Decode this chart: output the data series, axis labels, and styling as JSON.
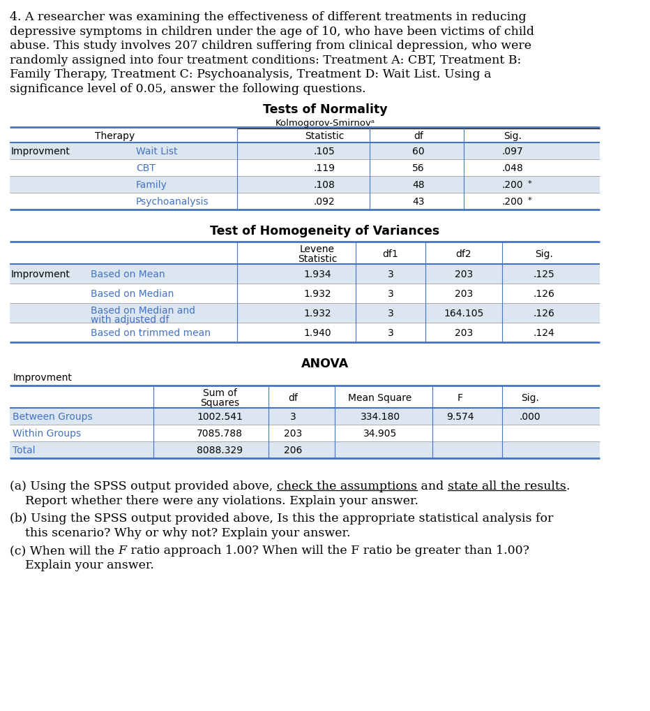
{
  "intro_lines": [
    "4. A researcher was examining the effectiveness of different treatments in reducing",
    "depressive symptoms in children under the age of 10, who have been victims of child",
    "abuse. This study involves 207 children suffering from clinical depression, who were",
    "randomly assigned into four treatment conditions: Treatment A: CBT, Treatment B:",
    "Family Therapy, Treatment C: Psychoanalysis, Treatment D: Wait List. Using a",
    "significance level of 0.05, answer the following questions."
  ],
  "normality_title": "Tests of Normality",
  "ks_subtitle": "Kolmogorov-Smirnovᵃ",
  "norm_col_headers": [
    "Therapy",
    "Statistic",
    "df",
    "Sig."
  ],
  "norm_rows": [
    [
      "Wait List",
      ".105",
      "60",
      ".097",
      false
    ],
    [
      "CBT",
      ".119",
      "56",
      ".048",
      false
    ],
    [
      "Family",
      ".108",
      "48",
      ".200",
      true
    ],
    [
      "Psychoanalysis",
      ".092",
      "43",
      ".200",
      true
    ]
  ],
  "homogeneity_title": "Test of Homogeneity of Variances",
  "hom_col_headers": [
    "Levene\nStatistic",
    "df1",
    "df2",
    "Sig."
  ],
  "hom_rows": [
    [
      "Based on Mean",
      "1.934",
      "3",
      "203",
      ".125"
    ],
    [
      "Based on Median",
      "1.932",
      "3",
      "203",
      ".126"
    ],
    [
      "Based on Median and\nwith adjusted df",
      "1.932",
      "3",
      "164.105",
      ".126"
    ],
    [
      "Based on trimmed mean",
      "1.940",
      "3",
      "203",
      ".124"
    ]
  ],
  "anova_title": "ANOVA",
  "anova_sublabel": "Improvment",
  "anova_col_headers": [
    "Sum of\nSquares",
    "df",
    "Mean Square",
    "F",
    "Sig."
  ],
  "anova_rows": [
    [
      "Between Groups",
      "1002.541",
      "3",
      "334.180",
      "9.574",
      ".000"
    ],
    [
      "Within Groups",
      "7085.788",
      "203",
      "34.905",
      "",
      ""
    ],
    [
      "Total",
      "8088.329",
      "206",
      "",
      "",
      ""
    ]
  ],
  "bg_color": "#ffffff",
  "cell_bg_gray": "#dce6f1",
  "cell_bg_white": "#ffffff",
  "text_blue": "#4472c4",
  "border_blue": "#4472c4",
  "border_gray": "#a0a0a0",
  "text_black": "#000000",
  "intro_font": "DejaVu Serif",
  "table_font": "DejaVu Sans",
  "intro_fontsize": 12.5,
  "table_fontsize": 10.0,
  "title_fontsize": 12.5
}
